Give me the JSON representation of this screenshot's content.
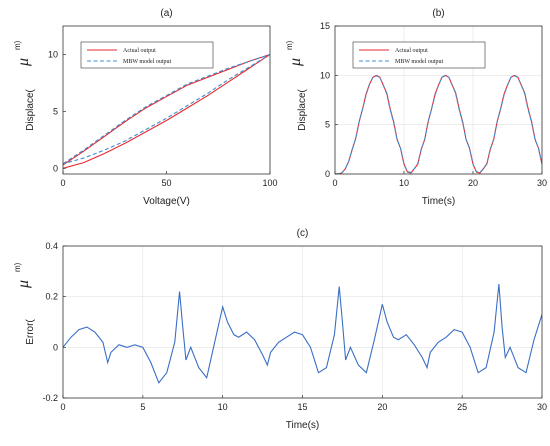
{
  "colors": {
    "actual": "#e8282f",
    "model": "#3d8fd1",
    "error": "#3a6fc4",
    "axis": "#333333"
  },
  "chart_data": [
    {
      "id": "a",
      "type": "line",
      "title": "(a)",
      "xlabel": "Voltage(V)",
      "ylabel": "Displace(",
      "ylabel_unit": "μ",
      "ylabel_unit_sup": "m)",
      "xlim": [
        0,
        100
      ],
      "ylim": [
        -0.5,
        12.5
      ],
      "xticks": [
        0,
        50,
        100
      ],
      "yticks": [
        0,
        5,
        10
      ],
      "grid": false,
      "legend": {
        "position": "top",
        "entries": [
          "Actual output",
          "MBW model output"
        ]
      },
      "series": [
        {
          "name": "Actual output",
          "style": "solid",
          "x": [
            0,
            10,
            20,
            30,
            40,
            50,
            60,
            70,
            80,
            90,
            100,
            90,
            80,
            70,
            60,
            50,
            40,
            30,
            20,
            10,
            0
          ],
          "y": [
            0.3,
            1.5,
            2.8,
            4.1,
            5.3,
            6.3,
            7.3,
            8.0,
            8.7,
            9.4,
            10.0,
            8.8,
            7.6,
            6.4,
            5.3,
            4.2,
            3.2,
            2.2,
            1.3,
            0.5,
            0.0
          ]
        },
        {
          "name": "MBW model output",
          "style": "dashed",
          "x": [
            0,
            10,
            20,
            30,
            40,
            50,
            60,
            70,
            80,
            90,
            100,
            90,
            80,
            70,
            60,
            50,
            40,
            30,
            20,
            10,
            0
          ],
          "y": [
            0.4,
            1.6,
            2.9,
            4.2,
            5.4,
            6.4,
            7.4,
            8.1,
            8.8,
            9.4,
            10.0,
            8.9,
            7.8,
            6.6,
            5.5,
            4.4,
            3.4,
            2.4,
            1.6,
            0.9,
            0.4
          ]
        }
      ]
    },
    {
      "id": "b",
      "type": "line",
      "title": "(b)",
      "xlabel": "Time(s)",
      "ylabel": "Displace(",
      "ylabel_unit": "μ",
      "ylabel_unit_sup": "m)",
      "xlim": [
        0,
        30
      ],
      "ylim": [
        0,
        15
      ],
      "xticks": [
        0,
        10,
        20,
        30
      ],
      "yticks": [
        0,
        5,
        10,
        15
      ],
      "grid": true,
      "legend": {
        "position": "top",
        "entries": [
          "Actual output",
          "MBW model output"
        ]
      },
      "series": [
        {
          "name": "Actual output",
          "style": "solid",
          "x": [
            0,
            0.5,
            1,
            1.5,
            2,
            2.5,
            3,
            3.5,
            4,
            4.5,
            5,
            5.5,
            6,
            6.5,
            7,
            7.5,
            8,
            8.5,
            9,
            9.5,
            10,
            10.5,
            11,
            11.5,
            12,
            12.5,
            13,
            13.5,
            14,
            14.5,
            15,
            15.5,
            16,
            16.5,
            17,
            17.5,
            18,
            18.5,
            19,
            19.5,
            20,
            20.5,
            21,
            21.5,
            22,
            22.5,
            23,
            23.5,
            24,
            24.5,
            25,
            25.5,
            26,
            26.5,
            27,
            27.5,
            28,
            28.5,
            29,
            29.5,
            30
          ],
          "y": [
            0,
            0.02,
            0.1,
            0.53,
            1.3,
            2.5,
            3.6,
            5.3,
            6.6,
            8.1,
            9.1,
            9.8,
            10.0,
            9.8,
            9.0,
            8.2,
            6.6,
            5.3,
            3.5,
            2.6,
            1.0,
            0.2,
            0.1,
            0.53,
            1.0,
            2.5,
            3.5,
            5.3,
            6.6,
            8.1,
            9.0,
            9.8,
            10.0,
            9.8,
            9.0,
            8.2,
            6.6,
            5.3,
            3.5,
            2.6,
            1.0,
            0.2,
            0.1,
            0.53,
            1.0,
            2.5,
            3.5,
            5.3,
            6.6,
            8.1,
            9.0,
            9.8,
            10.0,
            9.8,
            9.0,
            8.2,
            6.6,
            5.3,
            3.5,
            2.6,
            1.0
          ]
        },
        {
          "name": "MBW model output",
          "style": "dashed",
          "x": [
            0,
            0.5,
            1,
            1.5,
            2,
            2.5,
            3,
            3.5,
            4,
            4.5,
            5,
            5.5,
            6,
            6.5,
            7,
            7.5,
            8,
            8.5,
            9,
            9.5,
            10,
            10.5,
            11,
            11.5,
            12,
            12.5,
            13,
            13.5,
            14,
            14.5,
            15,
            15.5,
            16,
            16.5,
            17,
            17.5,
            18,
            18.5,
            19,
            19.5,
            20,
            20.5,
            21,
            21.5,
            22,
            22.5,
            23,
            23.5,
            24,
            24.5,
            25,
            25.5,
            26,
            26.5,
            27,
            27.5,
            28,
            28.5,
            29,
            29.5,
            30
          ],
          "y": [
            0,
            0.02,
            0.12,
            0.55,
            1.3,
            2.5,
            3.6,
            5.3,
            6.6,
            8.0,
            9.1,
            9.8,
            9.95,
            9.8,
            9.0,
            8.1,
            6.5,
            5.2,
            3.5,
            2.6,
            1.0,
            0.25,
            0.15,
            0.55,
            1.05,
            2.5,
            3.5,
            5.3,
            6.6,
            8.0,
            9.0,
            9.8,
            9.95,
            9.8,
            9.0,
            8.1,
            6.5,
            5.2,
            3.5,
            2.6,
            1.0,
            0.25,
            0.15,
            0.55,
            1.05,
            2.5,
            3.5,
            5.3,
            6.6,
            8.0,
            9.0,
            9.8,
            9.95,
            9.8,
            9.0,
            8.1,
            6.5,
            5.2,
            3.5,
            2.6,
            1.0
          ]
        }
      ]
    },
    {
      "id": "c",
      "type": "line",
      "title": "(c)",
      "xlabel": "Time(s)",
      "ylabel": "Error(",
      "ylabel_unit": "μ",
      "ylabel_unit_sup": "m)",
      "xlim": [
        0,
        30
      ],
      "ylim": [
        -0.2,
        0.4
      ],
      "xticks": [
        0,
        5,
        10,
        15,
        20,
        25,
        30
      ],
      "yticks": [
        -0.2,
        0,
        0.2,
        0.4
      ],
      "grid": true,
      "series": [
        {
          "name": "",
          "style": "solid",
          "x": [
            0,
            0.5,
            1,
            1.5,
            2,
            2.5,
            2.8,
            3.0,
            3.5,
            4,
            4.5,
            5,
            5.5,
            6,
            6.5,
            7.0,
            7.3,
            7.5,
            7.7,
            8.0,
            8.5,
            9.0,
            9.5,
            10.0,
            10.3,
            10.7,
            11.0,
            11.5,
            12.0,
            12.5,
            12.8,
            13.0,
            13.5,
            14.0,
            14.5,
            15.0,
            15.5,
            16.0,
            16.5,
            17.0,
            17.3,
            17.5,
            17.7,
            18.0,
            18.5,
            19.0,
            19.5,
            20.0,
            20.3,
            20.7,
            21.0,
            21.5,
            22.0,
            22.5,
            22.8,
            23.0,
            23.5,
            24.0,
            24.5,
            25.0,
            25.5,
            26.0,
            26.5,
            27.0,
            27.3,
            27.5,
            27.7,
            28.0,
            28.5,
            29.0,
            29.5,
            30.0
          ],
          "y": [
            0.0,
            0.04,
            0.07,
            0.08,
            0.06,
            0.02,
            -0.06,
            -0.02,
            0.01,
            0.0,
            0.01,
            0.0,
            -0.06,
            -0.14,
            -0.1,
            0.02,
            0.22,
            0.08,
            -0.05,
            0.0,
            -0.08,
            -0.12,
            0.02,
            0.16,
            0.1,
            0.05,
            0.04,
            0.06,
            0.03,
            -0.03,
            -0.07,
            -0.02,
            0.02,
            0.04,
            0.06,
            0.05,
            0.0,
            -0.1,
            -0.08,
            0.05,
            0.24,
            0.1,
            -0.05,
            0.0,
            -0.07,
            -0.1,
            0.03,
            0.17,
            0.1,
            0.04,
            0.03,
            0.05,
            0.01,
            -0.04,
            -0.08,
            -0.02,
            0.02,
            0.04,
            0.07,
            0.06,
            0.0,
            -0.1,
            -0.08,
            0.06,
            0.25,
            0.08,
            -0.04,
            0.0,
            -0.08,
            -0.1,
            0.03,
            0.13
          ]
        }
      ]
    }
  ]
}
